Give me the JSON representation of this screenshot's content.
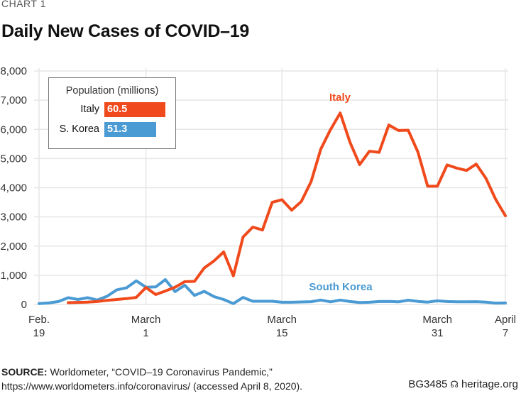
{
  "header": {
    "chart_number": "CHART 1",
    "title": "Daily New Cases of COVID–19"
  },
  "legend": {
    "title": "Population (millions)",
    "items": [
      {
        "name": "Italy",
        "value": "60.5",
        "population_millions": 60.5,
        "color": "#f04a1c"
      },
      {
        "name": "S. Korea",
        "value": "51.3",
        "population_millions": 51.3,
        "color": "#4a9ad4"
      }
    ]
  },
  "footer": {
    "source_label": "SOURCE:",
    "source_text": "Worldometer, “COVID–19 Coronavirus Pandemic,”",
    "source_url_line": "https://www.worldometers.info/coronavirus/ (accessed April 8, 2020).",
    "code": "BG3485",
    "site": "heritage.org",
    "bell_icon": "liberty-bell-icon"
  },
  "chart_data": {
    "type": "line",
    "title": "Daily New Cases of COVID–19",
    "xlabel": "",
    "ylabel": "",
    "ylim": [
      0,
      8000
    ],
    "yticks": [
      0,
      1000,
      2000,
      3000,
      4000,
      5000,
      6000,
      7000,
      8000
    ],
    "ytick_labels": [
      "0",
      "1,000",
      "2,000",
      "3,000",
      "4,000",
      "5,000",
      "6,000",
      "7,000",
      "8,000"
    ],
    "x_start": "Feb. 19",
    "x_end": "April 7",
    "x_range_days": [
      0,
      48
    ],
    "xticks": [
      {
        "day": 0,
        "line1": "Feb.",
        "line2": "19"
      },
      {
        "day": 11,
        "line1": "March",
        "line2": "1"
      },
      {
        "day": 25,
        "line1": "March",
        "line2": "15"
      },
      {
        "day": 41,
        "line1": "March",
        "line2": "31"
      },
      {
        "day": 48,
        "line1": "April",
        "line2": "7"
      }
    ],
    "grid": true,
    "legend_position": "top-left",
    "series": [
      {
        "name": "Italy",
        "label": "Italy",
        "color": "#f04a1c",
        "start_day": 3,
        "values": [
          60,
          70,
          80,
          100,
          140,
          170,
          200,
          240,
          580,
          340,
          460,
          590,
          780,
          790,
          1250,
          1490,
          1800,
          980,
          2310,
          2650,
          2550,
          3500,
          3590,
          3230,
          3530,
          4210,
          5320,
          5990,
          6560,
          5560,
          4790,
          5250,
          5210,
          6150,
          5960,
          5970,
          5220,
          4050,
          4050,
          4780,
          4670,
          4590,
          4810,
          4320,
          3600,
          3040
        ]
      },
      {
        "name": "South Korea",
        "label": "South Korea",
        "color": "#4a9ad4",
        "start_day": 0,
        "values": [
          30,
          50,
          100,
          230,
          170,
          230,
          150,
          280,
          500,
          570,
          810,
          590,
          600,
          850,
          440,
          660,
          310,
          450,
          270,
          170,
          30,
          240,
          110,
          110,
          110,
          75,
          75,
          85,
          95,
          150,
          90,
          150,
          100,
          65,
          75,
          100,
          105,
          90,
          145,
          105,
          80,
          125,
          100,
          90,
          90,
          95,
          80,
          45,
          50
        ]
      }
    ]
  }
}
